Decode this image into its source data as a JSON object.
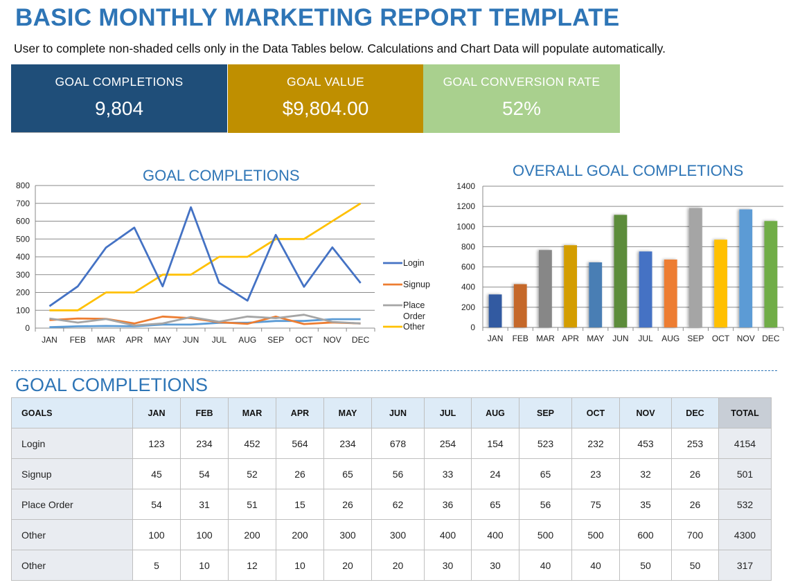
{
  "header": {
    "title": "BASIC MONTHLY MARKETING REPORT TEMPLATE",
    "subtitle": "User to complete non-shaded cells only in the Data Tables below.  Calculations and Chart Data will populate automatically."
  },
  "kpis": [
    {
      "label": "GOAL COMPLETIONS",
      "value": "9,804",
      "color": "#1f4e79"
    },
    {
      "label": "GOAL VALUE",
      "value": "$9,804.00",
      "color": "#bf8f00"
    },
    {
      "label": "GOAL CONVERSION RATE",
      "value": "52%",
      "color": "#a9d08e"
    }
  ],
  "chart_data": [
    {
      "type": "line",
      "title": "GOAL COMPLETIONS",
      "categories": [
        "JAN",
        "FEB",
        "MAR",
        "APR",
        "MAY",
        "JUN",
        "JUL",
        "AUG",
        "SEP",
        "OCT",
        "NOV",
        "DEC"
      ],
      "ylim": [
        0,
        800
      ],
      "yticks": [
        0,
        100,
        200,
        300,
        400,
        500,
        600,
        700,
        800
      ],
      "grid": true,
      "legend": "right",
      "series": [
        {
          "name": "Login",
          "color": "#4472c4",
          "legend": true,
          "values": [
            123,
            234,
            452,
            564,
            234,
            678,
            254,
            154,
            523,
            232,
            453,
            253
          ]
        },
        {
          "name": "Signup",
          "color": "#ed7d31",
          "legend": true,
          "values": [
            45,
            54,
            52,
            26,
            65,
            56,
            33,
            24,
            65,
            23,
            32,
            26
          ]
        },
        {
          "name": "Place Order",
          "color": "#a5a5a5",
          "legend": true,
          "values": [
            54,
            31,
            51,
            15,
            26,
            62,
            36,
            65,
            56,
            75,
            35,
            26
          ]
        },
        {
          "name": "Other",
          "color": "#ffc000",
          "legend": true,
          "values": [
            100,
            100,
            200,
            200,
            300,
            300,
            400,
            400,
            500,
            500,
            600,
            700
          ]
        },
        {
          "name": "Other",
          "color": "#5b9bd5",
          "legend": false,
          "values": [
            5,
            10,
            12,
            10,
            20,
            20,
            30,
            30,
            40,
            40,
            50,
            50
          ]
        }
      ],
      "xlabel": "",
      "ylabel": ""
    },
    {
      "type": "bar",
      "title": "OVERALL GOAL COMPLETIONS",
      "categories": [
        "JAN",
        "FEB",
        "MAR",
        "APR",
        "MAY",
        "JUN",
        "JUL",
        "AUG",
        "SEP",
        "OCT",
        "NOV",
        "DEC"
      ],
      "values": [
        327,
        429,
        767,
        815,
        645,
        1116,
        753,
        673,
        1184,
        870,
        1170,
        1055
      ],
      "colors": [
        "#335aa1",
        "#c5672b",
        "#878787",
        "#d39d00",
        "#4a7eb4",
        "#5b8c3a",
        "#4472c4",
        "#ed7d31",
        "#a5a5a5",
        "#ffc000",
        "#5b9bd5",
        "#70ad47"
      ],
      "ylim": [
        0,
        1400
      ],
      "yticks": [
        0,
        200,
        400,
        600,
        800,
        1000,
        1200,
        1400
      ],
      "grid": true,
      "xlabel": "",
      "ylabel": ""
    }
  ],
  "table": {
    "title": "GOAL COMPLETIONS",
    "headers": [
      "GOALS",
      "JAN",
      "FEB",
      "MAR",
      "APR",
      "MAY",
      "JUN",
      "JUL",
      "AUG",
      "SEP",
      "OCT",
      "NOV",
      "DEC",
      "TOTAL"
    ],
    "rows": [
      {
        "goal": "Login",
        "values": [
          "123",
          "234",
          "452",
          "564",
          "234",
          "678",
          "254",
          "154",
          "523",
          "232",
          "453",
          "253"
        ],
        "total": "4154"
      },
      {
        "goal": "Signup",
        "values": [
          "45",
          "54",
          "52",
          "26",
          "65",
          "56",
          "33",
          "24",
          "65",
          "23",
          "32",
          "26"
        ],
        "total": "501"
      },
      {
        "goal": "Place Order",
        "values": [
          "54",
          "31",
          "51",
          "15",
          "26",
          "62",
          "36",
          "65",
          "56",
          "75",
          "35",
          "26"
        ],
        "total": "532"
      },
      {
        "goal": "Other",
        "values": [
          "100",
          "100",
          "200",
          "200",
          "300",
          "300",
          "400",
          "400",
          "500",
          "500",
          "600",
          "700"
        ],
        "total": "4300"
      },
      {
        "goal": "Other",
        "values": [
          "5",
          "10",
          "12",
          "10",
          "20",
          "20",
          "30",
          "30",
          "40",
          "40",
          "50",
          "50"
        ],
        "total": "317"
      }
    ]
  }
}
